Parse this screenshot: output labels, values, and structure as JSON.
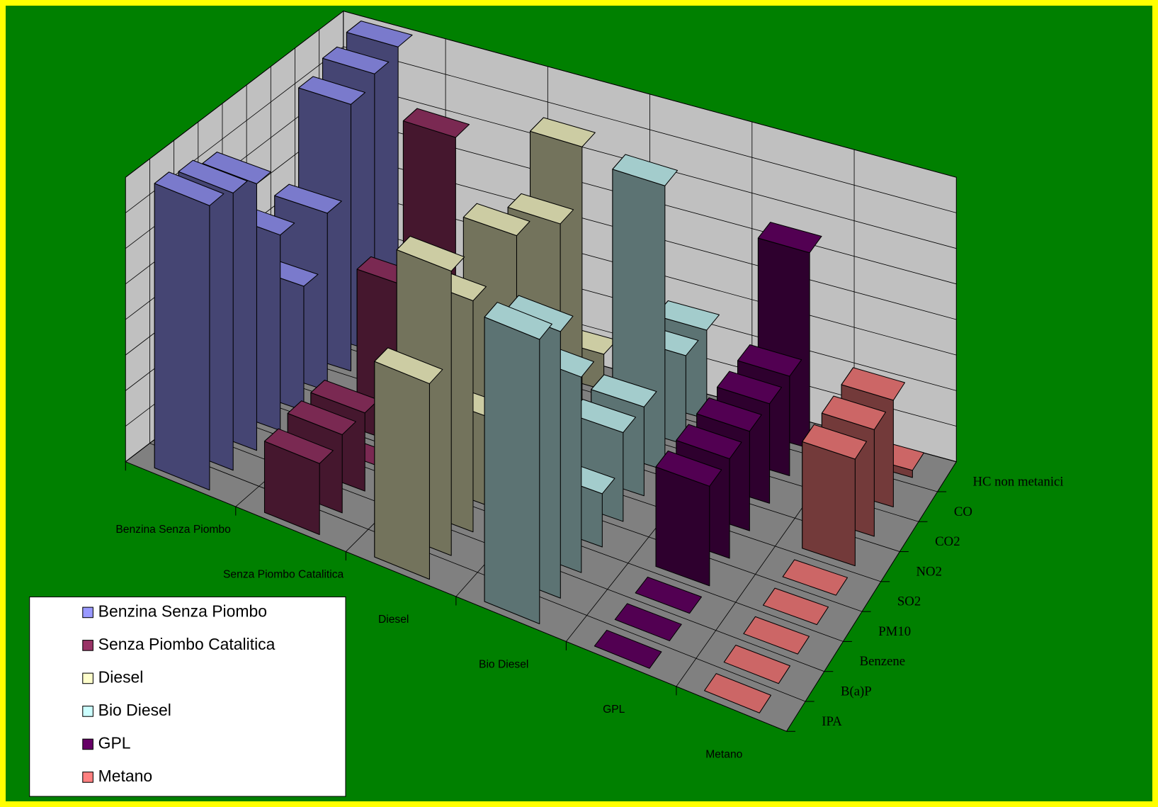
{
  "chart_data": {
    "type": "bar3d",
    "categories": [
      "IPA",
      "B(a)P",
      "Benzene",
      "PM10",
      "SO2",
      "NO2",
      "CO2",
      "CO",
      "HC non metanici"
    ],
    "series": [
      {
        "name": "Benzina Senza Piombo",
        "color": "#9999ff",
        "values": [
          8,
          7.8,
          7.5,
          5.5,
          3.5,
          5,
          7.5,
          7.8,
          8
        ]
      },
      {
        "name": "Senza Piombo Catalitica",
        "color": "#993366",
        "values": [
          2,
          2.2,
          2.2,
          0,
          4.5,
          0,
          7.5,
          1.5,
          0
        ]
      },
      {
        "name": "Diesel",
        "color": "#ffffcc",
        "values": [
          5.5,
          8,
          6.5,
          2.5,
          7,
          0.8,
          6,
          7.5,
          1
        ]
      },
      {
        "name": "Bio Diesel",
        "color": "#ccffff",
        "values": [
          8,
          7.5,
          5.5,
          1.5,
          2.5,
          2.5,
          8,
          2.5,
          2.5
        ]
      },
      {
        "name": "GPL",
        "color": "#660066",
        "values": [
          0,
          0,
          0,
          2.8,
          2.8,
          2.8,
          2.8,
          2.8,
          5.5
        ]
      },
      {
        "name": "Metano",
        "color": "#ff8080",
        "values": [
          0,
          0,
          0,
          0,
          0,
          3,
          3,
          3,
          0.2
        ]
      }
    ],
    "ylim": [
      0,
      8
    ],
    "yticks": [
      0,
      1,
      2,
      3,
      4,
      5,
      6,
      7,
      8
    ],
    "grid": true,
    "legend": "bottom-left"
  }
}
